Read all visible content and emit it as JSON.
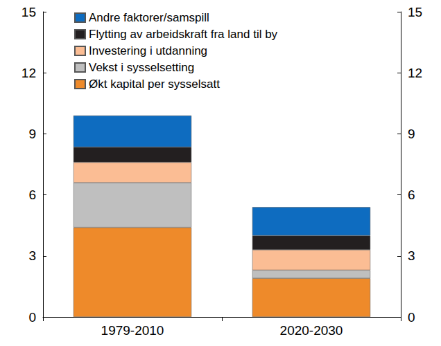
{
  "chart_data": {
    "type": "bar",
    "stacked": true,
    "categories": [
      "1979-2010",
      "2020-2030"
    ],
    "series": [
      {
        "name": "Økt kapital per sysselsatt",
        "color": "#ee8a2a",
        "values": [
          4.4,
          1.9
        ]
      },
      {
        "name": "Vekst i sysselsetting",
        "color": "#bfbfbf",
        "values": [
          2.2,
          0.4
        ]
      },
      {
        "name": "Investering i utdanning",
        "color": "#fbbd94",
        "values": [
          1.0,
          1.0
        ]
      },
      {
        "name": "Flytting av arbeidskraft fra land til by",
        "color": "#231f20",
        "values": [
          0.75,
          0.7
        ]
      },
      {
        "name": "Andre faktorer/samspill",
        "color": "#0e6cc0",
        "values": [
          1.55,
          1.4
        ]
      }
    ],
    "ylim": [
      0,
      15
    ],
    "yticks": [
      0,
      3,
      6,
      9,
      12,
      15
    ],
    "grid": false,
    "legend": "upper left"
  }
}
